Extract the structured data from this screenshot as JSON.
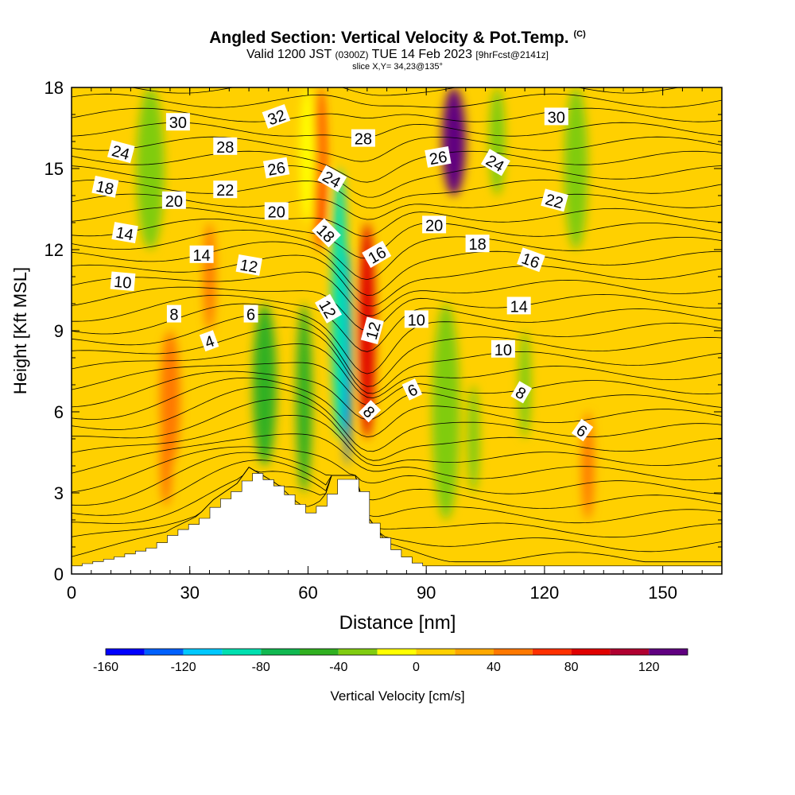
{
  "header": {
    "title": "Angled Section: Vertical Velocity & Pot.Temp.",
    "title_mark": "(C)",
    "valid_prefix": "Valid 1200 JST",
    "valid_utc": "(0300Z)",
    "valid_date": "TUE 14 Feb 2023",
    "forecast_info": "[9hrFcst@2141z]",
    "slice_info": "slice X,Y= 34,23@135°"
  },
  "chart_data": {
    "type": "heatmap",
    "xlabel": "Distance [nm]",
    "ylabel": "Height [Kft MSL]",
    "xlim": [
      0,
      165
    ],
    "ylim": [
      0,
      18
    ],
    "x_ticks": [
      0,
      30,
      60,
      90,
      120,
      150
    ],
    "y_ticks": [
      0,
      3,
      6,
      9,
      12,
      15,
      18
    ],
    "colorbar": {
      "label": "Vertical Velocity [cm/s]",
      "range": [
        -160,
        140
      ],
      "tick_values": [
        -160,
        -120,
        -80,
        -40,
        0,
        40,
        80,
        120
      ],
      "colors": [
        "#0000ff",
        "#0060ff",
        "#00c8ff",
        "#00e0b0",
        "#10b850",
        "#30b020",
        "#80cc10",
        "#ffff00",
        "#ffd000",
        "#ffa800",
        "#ff7800",
        "#ff3000",
        "#e00000",
        "#b00030",
        "#600080"
      ]
    },
    "terrain_profile": [
      {
        "x": 0,
        "height": 0.3
      },
      {
        "x": 10,
        "height": 0.6
      },
      {
        "x": 20,
        "height": 1.0
      },
      {
        "x": 25,
        "height": 1.5
      },
      {
        "x": 32,
        "height": 2.0
      },
      {
        "x": 36,
        "height": 2.6
      },
      {
        "x": 42,
        "height": 3.2
      },
      {
        "x": 45,
        "height": 3.8
      },
      {
        "x": 52,
        "height": 3.2
      },
      {
        "x": 55,
        "height": 2.8
      },
      {
        "x": 58,
        "height": 2.4
      },
      {
        "x": 60,
        "height": 2.2
      },
      {
        "x": 62,
        "height": 2.5
      },
      {
        "x": 64,
        "height": 2.6
      },
      {
        "x": 66,
        "height": 3.5
      },
      {
        "x": 72,
        "height": 3.5
      },
      {
        "x": 75,
        "height": 2.0
      },
      {
        "x": 80,
        "height": 1.0
      },
      {
        "x": 85,
        "height": 0.5
      },
      {
        "x": 88,
        "height": 0.3
      },
      {
        "x": 165,
        "height": 0.3
      }
    ],
    "velocity_features": [
      {
        "sign": "up",
        "value": 80,
        "x_center": 75,
        "width": 4,
        "y_bottom": 5,
        "y_top": 13
      },
      {
        "sign": "up",
        "value": 120,
        "x_center": 97,
        "width": 6,
        "y_bottom": 14,
        "y_top": 18
      },
      {
        "sign": "up",
        "value": 60,
        "x_center": 63,
        "width": 3,
        "y_bottom": 12,
        "y_top": 18
      },
      {
        "sign": "up",
        "value": 40,
        "x_center": 25,
        "width": 5,
        "y_bottom": 4,
        "y_top": 9
      },
      {
        "sign": "up",
        "value": 40,
        "x_center": 131,
        "width": 3,
        "y_bottom": 2,
        "y_top": 6
      },
      {
        "sign": "up",
        "value": 40,
        "x_center": 24,
        "width": 3,
        "y_bottom": 2.5,
        "y_top": 6
      },
      {
        "sign": "up",
        "value": 40,
        "x_center": 35,
        "width": 3,
        "y_bottom": 9,
        "y_top": 13
      },
      {
        "sign": "down",
        "value": -140,
        "x_center": 70,
        "width": 2,
        "y_bottom": 4,
        "y_top": 12
      },
      {
        "sign": "down",
        "value": -100,
        "x_center": 68,
        "width": 4,
        "y_bottom": 5,
        "y_top": 15
      },
      {
        "sign": "down",
        "value": -60,
        "x_center": 49,
        "width": 6,
        "y_bottom": 4,
        "y_top": 10
      },
      {
        "sign": "down",
        "value": -60,
        "x_center": 59,
        "width": 4,
        "y_bottom": 3,
        "y_top": 10
      },
      {
        "sign": "down",
        "value": -40,
        "x_center": 95,
        "width": 7,
        "y_bottom": 2,
        "y_top": 10
      },
      {
        "sign": "down",
        "value": -40,
        "x_center": 20,
        "width": 7,
        "y_bottom": 12,
        "y_top": 18
      },
      {
        "sign": "down",
        "value": -40,
        "x_center": 128,
        "width": 6,
        "y_bottom": 12,
        "y_top": 18
      },
      {
        "sign": "down",
        "value": -30,
        "x_center": 108,
        "width": 4,
        "y_bottom": 14,
        "y_top": 18
      },
      {
        "sign": "down",
        "value": -30,
        "x_center": 115,
        "width": 3,
        "y_bottom": 5,
        "y_top": 9
      },
      {
        "sign": "down",
        "value": -30,
        "x_center": 102,
        "width": 3,
        "y_bottom": 3,
        "y_top": 7
      },
      {
        "sign": "down",
        "value": -20,
        "x_center": 60,
        "width": 4,
        "y_bottom": 13,
        "y_top": 18
      }
    ],
    "contour_labels": [
      {
        "text": "30",
        "x": 27,
        "y": 16.7,
        "angle": 0
      },
      {
        "text": "32",
        "x": 52,
        "y": 16.9,
        "angle": -20
      },
      {
        "text": "28",
        "x": 74,
        "y": 16.1,
        "angle": 0
      },
      {
        "text": "30",
        "x": 123,
        "y": 16.9,
        "angle": 0
      },
      {
        "text": "24",
        "x": 12.5,
        "y": 15.6,
        "angle": 15
      },
      {
        "text": "28",
        "x": 39,
        "y": 15.8,
        "angle": 0
      },
      {
        "text": "26",
        "x": 52,
        "y": 15.0,
        "angle": -10
      },
      {
        "text": "26",
        "x": 93,
        "y": 15.4,
        "angle": -10
      },
      {
        "text": "24",
        "x": 107.5,
        "y": 15.2,
        "angle": 30
      },
      {
        "text": "24",
        "x": 66,
        "y": 14.6,
        "angle": 30
      },
      {
        "text": "18",
        "x": 8.5,
        "y": 14.3,
        "angle": 12
      },
      {
        "text": "22",
        "x": 39,
        "y": 14.2,
        "angle": 0
      },
      {
        "text": "20",
        "x": 26,
        "y": 13.8,
        "angle": 0
      },
      {
        "text": "22",
        "x": 122.5,
        "y": 13.8,
        "angle": 15
      },
      {
        "text": "20",
        "x": 52,
        "y": 13.4,
        "angle": 0
      },
      {
        "text": "20",
        "x": 92,
        "y": 12.9,
        "angle": 0
      },
      {
        "text": "14",
        "x": 13.5,
        "y": 12.6,
        "angle": 10
      },
      {
        "text": "18",
        "x": 64.5,
        "y": 12.6,
        "angle": 45
      },
      {
        "text": "18",
        "x": 103,
        "y": 12.2,
        "angle": 0
      },
      {
        "text": "14",
        "x": 33,
        "y": 11.8,
        "angle": 0
      },
      {
        "text": "16",
        "x": 77.5,
        "y": 11.8,
        "angle": -30
      },
      {
        "text": "16",
        "x": 116.5,
        "y": 11.6,
        "angle": 20
      },
      {
        "text": "12",
        "x": 45,
        "y": 11.4,
        "angle": 10
      },
      {
        "text": "10",
        "x": 13,
        "y": 10.8,
        "angle": 5
      },
      {
        "text": "14",
        "x": 113.5,
        "y": 9.9,
        "angle": 0
      },
      {
        "text": "8",
        "x": 26,
        "y": 9.6,
        "angle": 0
      },
      {
        "text": "6",
        "x": 45.5,
        "y": 9.6,
        "angle": 0
      },
      {
        "text": "12",
        "x": 65,
        "y": 9.8,
        "angle": 60
      },
      {
        "text": "10",
        "x": 87.5,
        "y": 9.4,
        "angle": 0
      },
      {
        "text": "12",
        "x": 76.5,
        "y": 9.0,
        "angle": -75
      },
      {
        "text": "4",
        "x": 35,
        "y": 8.6,
        "angle": -20
      },
      {
        "text": "10",
        "x": 109.5,
        "y": 8.3,
        "angle": 0
      },
      {
        "text": "6",
        "x": 86.5,
        "y": 6.8,
        "angle": -25
      },
      {
        "text": "8",
        "x": 114,
        "y": 6.7,
        "angle": 30
      },
      {
        "text": "8",
        "x": 75.5,
        "y": 6.0,
        "angle": 45
      },
      {
        "text": "6",
        "x": 129.5,
        "y": 5.3,
        "angle": 35
      }
    ],
    "grid": false,
    "legend_placement": "bottom"
  }
}
